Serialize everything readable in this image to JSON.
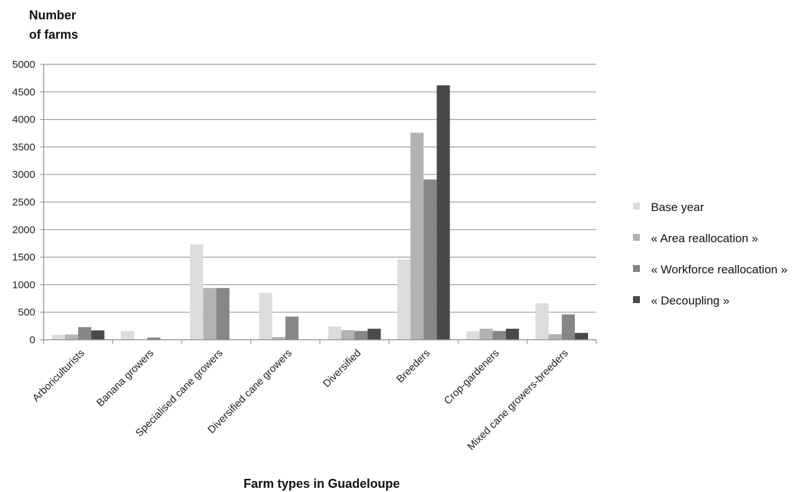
{
  "chart_data": {
    "type": "bar",
    "title": "",
    "ylabel_line1": "Number",
    "ylabel_line2": "of farms",
    "xlabel": "Farm types in Guadeloupe",
    "ylim": [
      0,
      5000
    ],
    "yticks": [
      "0",
      "500",
      "1000",
      "1500",
      "2000",
      "2500",
      "3000",
      "3500",
      "4000",
      "4500",
      "5000"
    ],
    "grid": true,
    "legend_position": "right",
    "categories": [
      "Arboriculturists",
      "Banana growers",
      "Specialised cane growers",
      "Diversified cane growers",
      "Diversified",
      "Breeders",
      "Crop-gardeners",
      "Mixed cane growers-breeders"
    ],
    "series": [
      {
        "name": "Base year",
        "color": "#dcdcdc",
        "values": [
          90,
          160,
          1730,
          850,
          240,
          1460,
          150,
          660
        ]
      },
      {
        "name": "« Area reallocation »",
        "color": "#b3b3b3",
        "values": [
          95,
          0,
          940,
          50,
          175,
          3760,
          200,
          100
        ]
      },
      {
        "name": "« Workforce  reallocation »",
        "color": "#868686",
        "values": [
          230,
          40,
          940,
          420,
          160,
          2910,
          160,
          460
        ]
      },
      {
        "name": "« Decoupling »",
        "color": "#4a4a4a",
        "values": [
          170,
          0,
          0,
          0,
          200,
          4620,
          200,
          125
        ]
      }
    ]
  }
}
